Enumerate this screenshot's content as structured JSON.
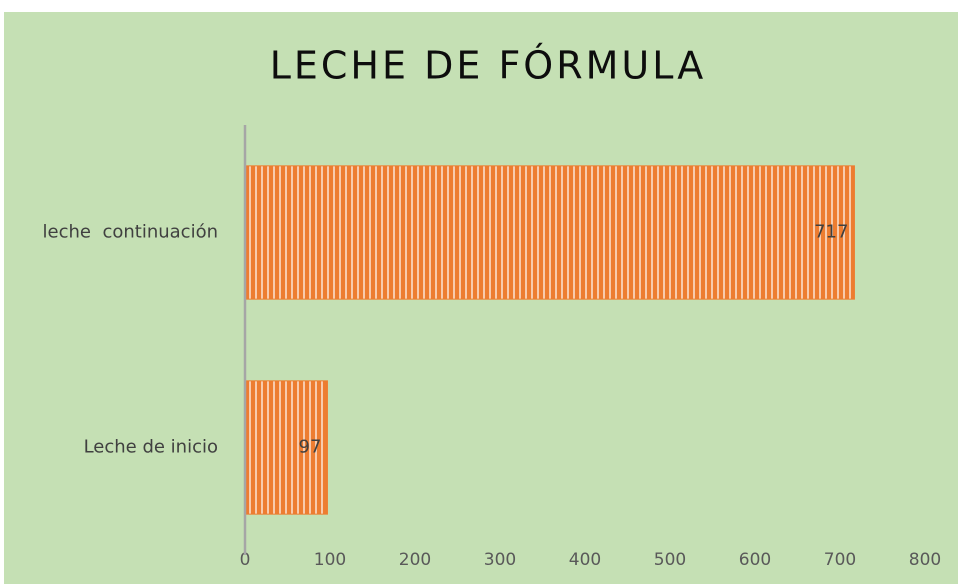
{
  "chart_data": {
    "type": "bar",
    "orientation": "horizontal",
    "title": "LECHE DE FÓRMULA",
    "categories": [
      "leche  continuación",
      "Leche de inicio"
    ],
    "values": [
      717,
      97
    ],
    "color": "#ed7d31",
    "xlim": [
      0,
      800
    ],
    "xticks": [
      0,
      100,
      200,
      300,
      400,
      500,
      600,
      700,
      800
    ],
    "grid": false
  }
}
